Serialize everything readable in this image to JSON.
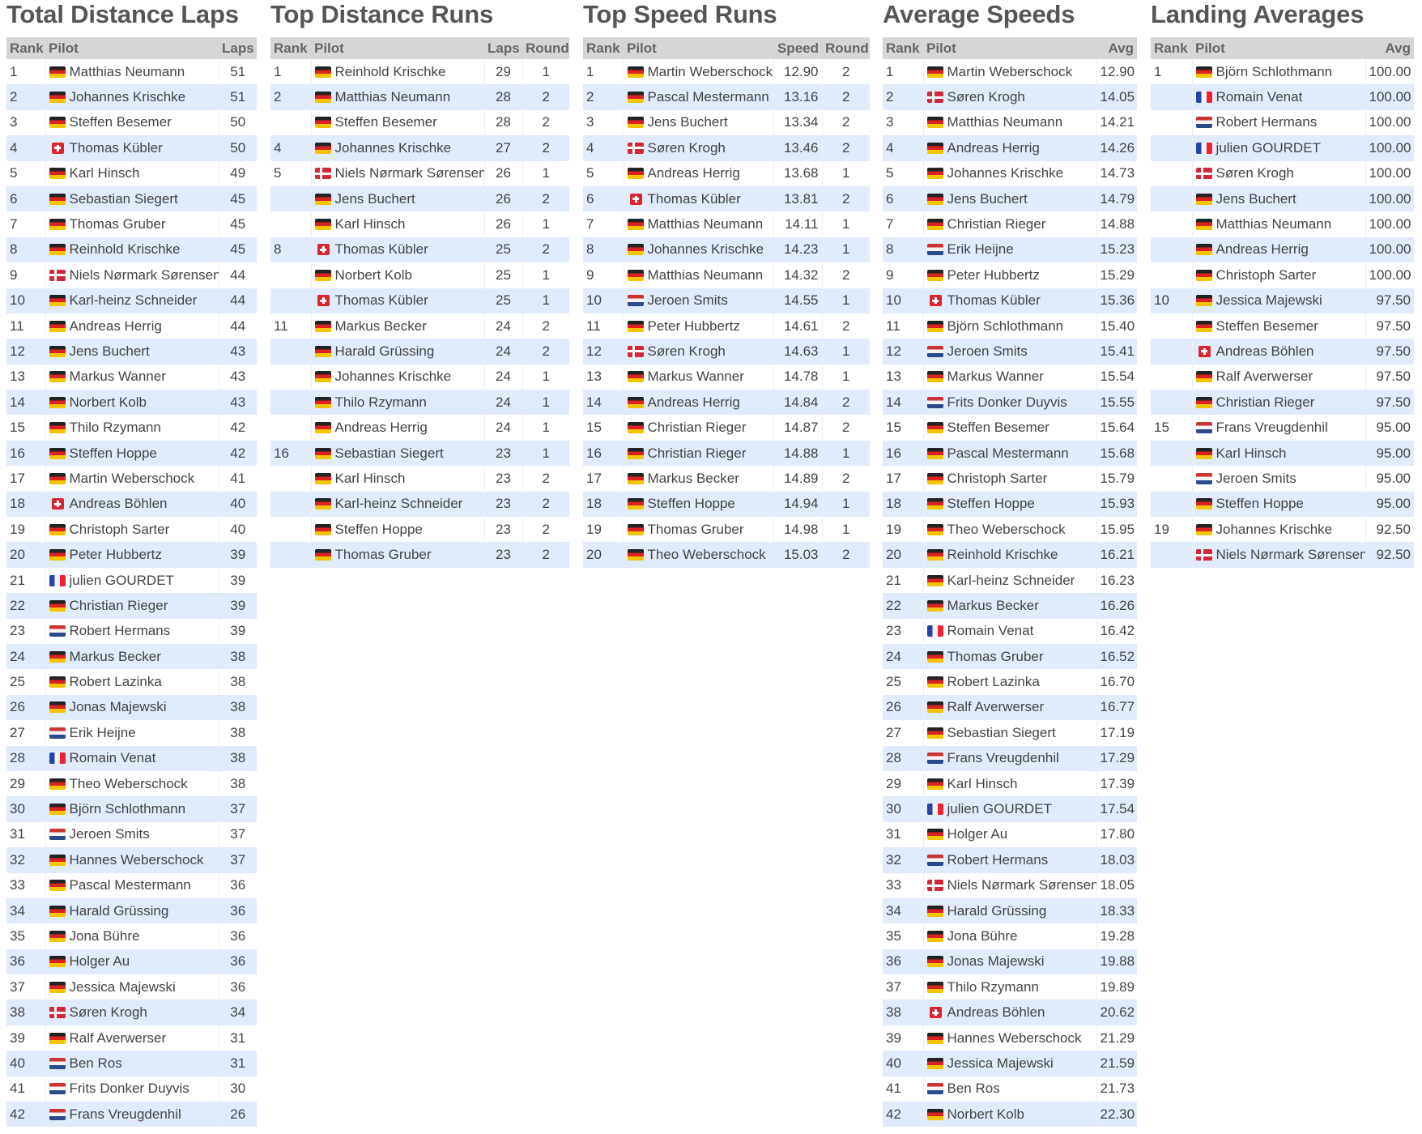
{
  "colors": {
    "header_bg": "#d6d6d6",
    "stripe": "#e0ebfb",
    "text": "#444444"
  },
  "tables": [
    {
      "title": "Total Distance Laps",
      "headers": [
        "Rank",
        "Pilot",
        "Laps"
      ],
      "rows": [
        [
          "1",
          "de",
          "Matthias Neumann",
          "51"
        ],
        [
          "2",
          "de",
          "Johannes Krischke",
          "51"
        ],
        [
          "3",
          "de",
          "Steffen Besemer",
          "50"
        ],
        [
          "4",
          "ch",
          "Thomas Kübler",
          "50"
        ],
        [
          "5",
          "de",
          "Karl Hinsch",
          "49"
        ],
        [
          "6",
          "de",
          "Sebastian Siegert",
          "45"
        ],
        [
          "7",
          "de",
          "Thomas Gruber",
          "45"
        ],
        [
          "8",
          "de",
          "Reinhold Krischke",
          "45"
        ],
        [
          "9",
          "dk",
          "Niels Nørmark Sørensen",
          "44"
        ],
        [
          "10",
          "de",
          "Karl-heinz Schneider",
          "44"
        ],
        [
          "11",
          "de",
          "Andreas Herrig",
          "44"
        ],
        [
          "12",
          "de",
          "Jens Buchert",
          "43"
        ],
        [
          "13",
          "de",
          "Markus Wanner",
          "43"
        ],
        [
          "14",
          "de",
          "Norbert Kolb",
          "43"
        ],
        [
          "15",
          "de",
          "Thilo Rzymann",
          "42"
        ],
        [
          "16",
          "de",
          "Steffen Hoppe",
          "42"
        ],
        [
          "17",
          "de",
          "Martin Weberschock",
          "41"
        ],
        [
          "18",
          "ch",
          "Andreas Böhlen",
          "40"
        ],
        [
          "19",
          "de",
          "Christoph Sarter",
          "40"
        ],
        [
          "20",
          "de",
          "Peter Hubbertz",
          "39"
        ],
        [
          "21",
          "fr",
          "julien GOURDET",
          "39"
        ],
        [
          "22",
          "de",
          "Christian Rieger",
          "39"
        ],
        [
          "23",
          "nl",
          "Robert Hermans",
          "39"
        ],
        [
          "24",
          "de",
          "Markus Becker",
          "38"
        ],
        [
          "25",
          "de",
          "Robert Lazinka",
          "38"
        ],
        [
          "26",
          "de",
          "Jonas Majewski",
          "38"
        ],
        [
          "27",
          "nl",
          "Erik Heijne",
          "38"
        ],
        [
          "28",
          "fr",
          "Romain Venat",
          "38"
        ],
        [
          "29",
          "de",
          "Theo Weberschock",
          "38"
        ],
        [
          "30",
          "de",
          "Björn Schlothmann",
          "37"
        ],
        [
          "31",
          "nl",
          "Jeroen Smits",
          "37"
        ],
        [
          "32",
          "de",
          "Hannes Weberschock",
          "37"
        ],
        [
          "33",
          "de",
          "Pascal Mestermann",
          "36"
        ],
        [
          "34",
          "de",
          "Harald Grüssing",
          "36"
        ],
        [
          "35",
          "de",
          "Jona Bühre",
          "36"
        ],
        [
          "36",
          "de",
          "Holger Au",
          "36"
        ],
        [
          "37",
          "de",
          "Jessica Majewski",
          "36"
        ],
        [
          "38",
          "dk",
          "Søren Krogh",
          "34"
        ],
        [
          "39",
          "de",
          "Ralf Averwerser",
          "31"
        ],
        [
          "40",
          "nl",
          "Ben Ros",
          "31"
        ],
        [
          "41",
          "nl",
          "Frits Donker Duyvis",
          "30"
        ],
        [
          "42",
          "nl",
          "Frans Vreugdenhil",
          "26"
        ]
      ]
    },
    {
      "title": "Top Distance Runs",
      "headers": [
        "Rank",
        "Pilot",
        "Laps",
        "Round"
      ],
      "rows": [
        [
          "1",
          "de",
          "Reinhold Krischke",
          "29",
          "1"
        ],
        [
          "2",
          "de",
          "Matthias Neumann",
          "28",
          "2"
        ],
        [
          "",
          "de",
          "Steffen Besemer",
          "28",
          "2"
        ],
        [
          "4",
          "de",
          "Johannes Krischke",
          "27",
          "2"
        ],
        [
          "5",
          "dk",
          "Niels Nørmark Sørensen",
          "26",
          "1"
        ],
        [
          "",
          "de",
          "Jens Buchert",
          "26",
          "2"
        ],
        [
          "",
          "de",
          "Karl Hinsch",
          "26",
          "1"
        ],
        [
          "8",
          "ch",
          "Thomas Kübler",
          "25",
          "2"
        ],
        [
          "",
          "de",
          "Norbert Kolb",
          "25",
          "1"
        ],
        [
          "",
          "ch",
          "Thomas Kübler",
          "25",
          "1"
        ],
        [
          "11",
          "de",
          "Markus Becker",
          "24",
          "2"
        ],
        [
          "",
          "de",
          "Harald Grüssing",
          "24",
          "2"
        ],
        [
          "",
          "de",
          "Johannes Krischke",
          "24",
          "1"
        ],
        [
          "",
          "de",
          "Thilo Rzymann",
          "24",
          "1"
        ],
        [
          "",
          "de",
          "Andreas Herrig",
          "24",
          "1"
        ],
        [
          "16",
          "de",
          "Sebastian Siegert",
          "23",
          "1"
        ],
        [
          "",
          "de",
          "Karl Hinsch",
          "23",
          "2"
        ],
        [
          "",
          "de",
          "Karl-heinz Schneider",
          "23",
          "2"
        ],
        [
          "",
          "de",
          "Steffen Hoppe",
          "23",
          "2"
        ],
        [
          "",
          "de",
          "Thomas Gruber",
          "23",
          "2"
        ]
      ]
    },
    {
      "title": "Top Speed Runs",
      "headers": [
        "Rank",
        "Pilot",
        "Speed",
        "Round"
      ],
      "rows": [
        [
          "1",
          "de",
          "Martin Weberschock",
          "12.90",
          "2"
        ],
        [
          "2",
          "de",
          "Pascal Mestermann",
          "13.16",
          "2"
        ],
        [
          "3",
          "de",
          "Jens Buchert",
          "13.34",
          "2"
        ],
        [
          "4",
          "dk",
          "Søren Krogh",
          "13.46",
          "2"
        ],
        [
          "5",
          "de",
          "Andreas Herrig",
          "13.68",
          "1"
        ],
        [
          "6",
          "ch",
          "Thomas Kübler",
          "13.81",
          "2"
        ],
        [
          "7",
          "de",
          "Matthias Neumann",
          "14.11",
          "1"
        ],
        [
          "8",
          "de",
          "Johannes Krischke",
          "14.23",
          "1"
        ],
        [
          "9",
          "de",
          "Matthias Neumann",
          "14.32",
          "2"
        ],
        [
          "10",
          "nl",
          "Jeroen Smits",
          "14.55",
          "1"
        ],
        [
          "11",
          "de",
          "Peter Hubbertz",
          "14.61",
          "2"
        ],
        [
          "12",
          "dk",
          "Søren Krogh",
          "14.63",
          "1"
        ],
        [
          "13",
          "de",
          "Markus Wanner",
          "14.78",
          "1"
        ],
        [
          "14",
          "de",
          "Andreas Herrig",
          "14.84",
          "2"
        ],
        [
          "15",
          "de",
          "Christian Rieger",
          "14.87",
          "2"
        ],
        [
          "16",
          "de",
          "Christian Rieger",
          "14.88",
          "1"
        ],
        [
          "17",
          "de",
          "Markus Becker",
          "14.89",
          "2"
        ],
        [
          "18",
          "de",
          "Steffen Hoppe",
          "14.94",
          "1"
        ],
        [
          "19",
          "de",
          "Thomas Gruber",
          "14.98",
          "1"
        ],
        [
          "20",
          "de",
          "Theo Weberschock",
          "15.03",
          "2"
        ]
      ]
    },
    {
      "title": "Average Speeds",
      "headers": [
        "Rank",
        "Pilot",
        "Avg"
      ],
      "rows": [
        [
          "1",
          "de",
          "Martin Weberschock",
          "12.90"
        ],
        [
          "2",
          "dk",
          "Søren Krogh",
          "14.05"
        ],
        [
          "3",
          "de",
          "Matthias Neumann",
          "14.21"
        ],
        [
          "4",
          "de",
          "Andreas Herrig",
          "14.26"
        ],
        [
          "5",
          "de",
          "Johannes Krischke",
          "14.73"
        ],
        [
          "6",
          "de",
          "Jens Buchert",
          "14.79"
        ],
        [
          "7",
          "de",
          "Christian Rieger",
          "14.88"
        ],
        [
          "8",
          "nl",
          "Erik Heijne",
          "15.23"
        ],
        [
          "9",
          "de",
          "Peter Hubbertz",
          "15.29"
        ],
        [
          "10",
          "ch",
          "Thomas Kübler",
          "15.36"
        ],
        [
          "11",
          "de",
          "Björn Schlothmann",
          "15.40"
        ],
        [
          "12",
          "nl",
          "Jeroen Smits",
          "15.41"
        ],
        [
          "13",
          "de",
          "Markus Wanner",
          "15.54"
        ],
        [
          "14",
          "nl",
          "Frits Donker Duyvis",
          "15.55"
        ],
        [
          "15",
          "de",
          "Steffen Besemer",
          "15.64"
        ],
        [
          "16",
          "de",
          "Pascal Mestermann",
          "15.68"
        ],
        [
          "17",
          "de",
          "Christoph Sarter",
          "15.79"
        ],
        [
          "18",
          "de",
          "Steffen Hoppe",
          "15.93"
        ],
        [
          "19",
          "de",
          "Theo Weberschock",
          "15.95"
        ],
        [
          "20",
          "de",
          "Reinhold Krischke",
          "16.21"
        ],
        [
          "21",
          "de",
          "Karl-heinz Schneider",
          "16.23"
        ],
        [
          "22",
          "de",
          "Markus Becker",
          "16.26"
        ],
        [
          "23",
          "fr",
          "Romain Venat",
          "16.42"
        ],
        [
          "24",
          "de",
          "Thomas Gruber",
          "16.52"
        ],
        [
          "25",
          "de",
          "Robert Lazinka",
          "16.70"
        ],
        [
          "26",
          "de",
          "Ralf Averwerser",
          "16.77"
        ],
        [
          "27",
          "de",
          "Sebastian Siegert",
          "17.19"
        ],
        [
          "28",
          "nl",
          "Frans Vreugdenhil",
          "17.29"
        ],
        [
          "29",
          "de",
          "Karl Hinsch",
          "17.39"
        ],
        [
          "30",
          "fr",
          "julien GOURDET",
          "17.54"
        ],
        [
          "31",
          "de",
          "Holger Au",
          "17.80"
        ],
        [
          "32",
          "nl",
          "Robert Hermans",
          "18.03"
        ],
        [
          "33",
          "dk",
          "Niels Nørmark Sørensen",
          "18.05"
        ],
        [
          "34",
          "de",
          "Harald Grüssing",
          "18.33"
        ],
        [
          "35",
          "de",
          "Jona Bühre",
          "19.28"
        ],
        [
          "36",
          "de",
          "Jonas Majewski",
          "19.88"
        ],
        [
          "37",
          "de",
          "Thilo Rzymann",
          "19.89"
        ],
        [
          "38",
          "ch",
          "Andreas Böhlen",
          "20.62"
        ],
        [
          "39",
          "de",
          "Hannes Weberschock",
          "21.29"
        ],
        [
          "40",
          "de",
          "Jessica Majewski",
          "21.59"
        ],
        [
          "41",
          "nl",
          "Ben Ros",
          "21.73"
        ],
        [
          "42",
          "de",
          "Norbert Kolb",
          "22.30"
        ]
      ]
    },
    {
      "title": "Landing Averages",
      "headers": [
        "Rank",
        "Pilot",
        "Avg"
      ],
      "rows": [
        [
          "1",
          "de",
          "Björn Schlothmann",
          "100.00"
        ],
        [
          "",
          "fr",
          "Romain Venat",
          "100.00"
        ],
        [
          "",
          "nl",
          "Robert Hermans",
          "100.00"
        ],
        [
          "",
          "fr",
          "julien GOURDET",
          "100.00"
        ],
        [
          "",
          "dk",
          "Søren Krogh",
          "100.00"
        ],
        [
          "",
          "de",
          "Jens Buchert",
          "100.00"
        ],
        [
          "",
          "de",
          "Matthias Neumann",
          "100.00"
        ],
        [
          "",
          "de",
          "Andreas Herrig",
          "100.00"
        ],
        [
          "",
          "de",
          "Christoph Sarter",
          "100.00"
        ],
        [
          "10",
          "de",
          "Jessica Majewski",
          "97.50"
        ],
        [
          "",
          "de",
          "Steffen Besemer",
          "97.50"
        ],
        [
          "",
          "ch",
          "Andreas Böhlen",
          "97.50"
        ],
        [
          "",
          "de",
          "Ralf Averwerser",
          "97.50"
        ],
        [
          "",
          "de",
          "Christian Rieger",
          "97.50"
        ],
        [
          "15",
          "nl",
          "Frans Vreugdenhil",
          "95.00"
        ],
        [
          "",
          "de",
          "Karl Hinsch",
          "95.00"
        ],
        [
          "",
          "nl",
          "Jeroen Smits",
          "95.00"
        ],
        [
          "",
          "de",
          "Steffen Hoppe",
          "95.00"
        ],
        [
          "19",
          "de",
          "Johannes Krischke",
          "92.50"
        ],
        [
          "",
          "dk",
          "Niels Nørmark Sørensen",
          "92.50"
        ]
      ]
    }
  ]
}
